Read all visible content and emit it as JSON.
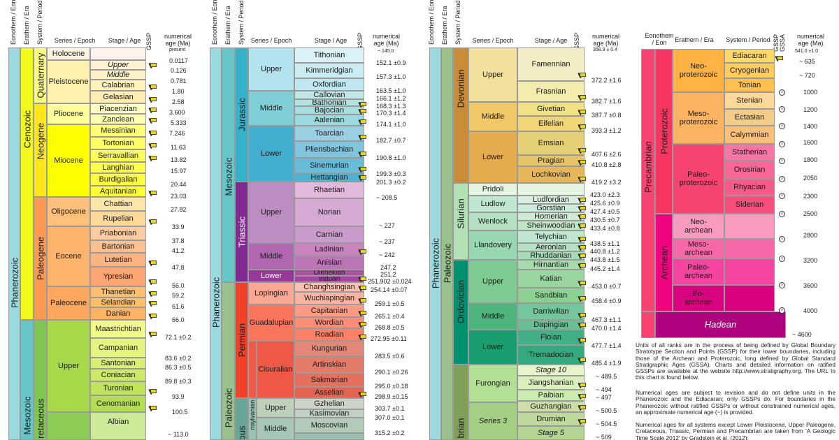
{
  "headers": {
    "eonothem_eon": "Eonothem / Eon",
    "erathem_era": "Erathem / Era",
    "system_period": "System / Period",
    "series_epoch": "Series / Epoch",
    "stage_age": "Stage / Age",
    "gssp": "GSSP",
    "numerical_age_1": "numerical",
    "numerical_age_2": "age (Ma)",
    "gssa": "GSSA",
    "eonothem_eon_stacked_1": "Eonothem",
    "eonothem_eon_stacked_2": "/ Eon"
  },
  "panel1": {
    "eon": "Phanerozoic",
    "eras": [
      "Cenozoic",
      "Mesozoic"
    ],
    "periods": [
      "Quaternary",
      "Neogene",
      "Paleogene",
      "Cretaceous"
    ],
    "epochs": [
      "Holocene",
      "Pleistocene",
      "Pliocene",
      "Miocene",
      "Oligocene",
      "Eocene",
      "Paleocene",
      "Upper"
    ],
    "stages": [
      "Upper",
      "Middle",
      "Calabrian",
      "Gelasian",
      "Piacenzian",
      "Zanclean",
      "Messinian",
      "Tortonian",
      "Serravallian",
      "Langhian",
      "Burdigalian",
      "Aquitanian",
      "Chattian",
      "Rupelian",
      "Priabonian",
      "Bartonian",
      "Lutetian",
      "Ypresian",
      "Thanetian",
      "Selandian",
      "Danian",
      "Maastrichtian",
      "Campanian",
      "Santonian",
      "Coniacian",
      "Turonian",
      "Cenomanian",
      "Albian"
    ],
    "ages": [
      "present",
      "0.0117",
      "0.126",
      "0.781",
      "1.80",
      "2.58",
      "3.600",
      "5.333",
      "7.246",
      "11.63",
      "13.82",
      "15.97",
      "20.44",
      "23.03",
      "27.82",
      "33.9",
      "37.8",
      "41.2",
      "47.8",
      "56.0",
      "59.2",
      "61.6",
      "66.0",
      "72.1 ±0.2",
      "83.6 ±0.2",
      "86.3 ±0.5",
      "89.8 ±0.3",
      "93.9",
      "100.5",
      "~ 113.0"
    ]
  },
  "panel2": {
    "eon": "Phanerozoic",
    "eras": [
      "Mesozoic",
      "Paleozoic"
    ],
    "periods": [
      "Jurassic",
      "Triassic",
      "Permian",
      "ous"
    ],
    "subperiod": "nsylvanian",
    "epochs": [
      "Upper",
      "Middle",
      "Lower",
      "Upper",
      "Middle",
      "Lower",
      "Lopingian",
      "Guadalupian",
      "Cisuralian",
      "Upper",
      "Middle"
    ],
    "stages": [
      "Tithonian",
      "Kimmeridgian",
      "Oxfordian",
      "Callovian",
      "Bathonian",
      "Bajocian",
      "Aalenian",
      "Toarcian",
      "Pliensbachian",
      "Sinemurian",
      "Hettangian",
      "Rhaetian",
      "Norian",
      "Carnian",
      "Ladinian",
      "Anisian",
      "Olenekian",
      "Induan",
      "Changhsingian",
      "Wuchiapingian",
      "Capitanian",
      "Wordian",
      "Roadian",
      "Kungurian",
      "Artinskian",
      "Sakmarian",
      "Asselian",
      "Gzhelian",
      "Kasimovian",
      "Moscovian"
    ],
    "ages": [
      "~ 145.0",
      "152.1 ±0.9",
      "157.3 ±1.0",
      "163.5 ±1.0",
      "166.1 ±1.2",
      "168.3 ±1.3",
      "170.3 ±1.4",
      "174.1 ±1.0",
      "182.7 ±0.7",
      "190.8 ±1.0",
      "199.3 ±0.3",
      "201.3 ±0.2",
      "~ 208.5",
      "~ 227",
      "~ 237",
      "~ 242",
      "247.2",
      "251.2",
      "251.902 ±0.024",
      "254.14 ±0.07",
      "259.1 ±0.5",
      "265.1 ±0.4",
      "268.8 ±0.5",
      "272.95 ±0.11",
      "283.5 ±0.6",
      "290.1 ±0.26",
      "295.0 ±0.18",
      "298.9 ±0.15",
      "303.7 ±0.1",
      "307.0 ±0.1",
      "315.2 ±0.2"
    ]
  },
  "panel3": {
    "eon": "Phanerozoic",
    "era": "Paleozoic",
    "periods": [
      "Devonian",
      "Silurian",
      "Ordovician",
      "brian"
    ],
    "epochs": [
      "Upper",
      "Middle",
      "Lower",
      "Pridoli",
      "Ludlow",
      "Wenlock",
      "Llandovery",
      "Upper",
      "Middle",
      "Lower",
      "Furongian",
      "Series 3"
    ],
    "stages": [
      "Famennian",
      "Frasnian",
      "Givetian",
      "Eifelian",
      "Emsian",
      "Pragian",
      "Lochkovian",
      "Ludfordian",
      "Gorstian",
      "Homerian",
      "Sheinwoodian",
      "Telychian",
      "Aeronian",
      "Rhuddanian",
      "Hirnantian",
      "Katian",
      "Sandbian",
      "Darriwilian",
      "Dapingian",
      "Floian",
      "Tremadocian",
      "Stage 10",
      "Jiangshanian",
      "Paibian",
      "Guzhangian",
      "Drumian",
      "Stage 5"
    ],
    "ages": [
      "358.9 ± 0.4",
      "372.2 ±1.6",
      "382.7 ±1.6",
      "387.7 ±0.8",
      "393.3 ±1.2",
      "407.6 ±2.6",
      "410.8 ±2.8",
      "419.2 ±3.2",
      "423.0 ±2.3",
      "425.6 ±0.9",
      "427.4 ±0.5",
      "430.5 ±0.7",
      "433.4 ±0.8",
      "438.5 ±1.1",
      "440.8 ±1.2",
      "443.8 ±1.5",
      "445.2 ±1.4",
      "453.0 ±0.7",
      "458.4 ±0.9",
      "467.3 ±1.1",
      "470.0 ±1.4",
      "477.7 ±1.4",
      "485.4 ±1.9",
      "~ 489.5",
      "~ 494",
      "~ 497",
      "~ 500.5",
      "~ 504.5",
      "~ 509"
    ]
  },
  "panel4": {
    "supereon": "Precambrian",
    "eons": [
      "Proterozoic",
      "Archean",
      "Hadean"
    ],
    "eras": [
      "Neo-\nproterozoic",
      "Meso-\nproterozoic",
      "Paleo-\nproterozoic",
      "Neo-\narchean",
      "Meso-\narchean",
      "Paleo-\narchean",
      "Eo-\narchean"
    ],
    "periods": [
      "Ediacaran",
      "Cryogenian",
      "Tonian",
      "Stenian",
      "Ectasian",
      "Calymmian",
      "Statherian",
      "Orosirian",
      "Rhyacian",
      "Siderian"
    ],
    "ages": [
      "541.0 ±1.0",
      "~ 635",
      "~ 720",
      "1000",
      "1200",
      "1400",
      "1600",
      "1800",
      "2050",
      "2300",
      "2500",
      "2800",
      "3200",
      "3600",
      "4000",
      "~ 4600"
    ]
  },
  "notes": [
    "Units of all ranks are in the process of being defined by Global Boundary Stratotype Section and Points (GSSP) for their lower boundaries, including those of the Archean and Proterozoic, long defined by Global Standard Stratigraphic Ages (GSSA). Charts and detailed information on ratified GSSPs are available at the website http://www.stratigraphy.org. The URL to this chart is found below.",
    "Numerical ages are subject to revision and do not define units in the Phanerozoic and the Ediacaran; only GSSPs do. For boundaries in the Phanerozoic without ratified GSSPs or without constrained numerical ages, an approximate numerical age (~) is provided.",
    "Numerical ages for all systems except Lower Pleistocene, Upper Paleogene, Cretaceous, Triassic, Permian and Precambrian are taken from 'A Geologic Time Scale 2012' by Gradstein et al. (2012);"
  ],
  "colors": {
    "phanerozoic": "#9AD9DD",
    "cenozoic": "#F2F91D",
    "quaternary": "#F9F97F",
    "neogene": "#FFE619",
    "paleogene": "#FD9A52",
    "mesozoic": "#67C5CA",
    "cretaceous": "#7FC64E",
    "jurassic": "#34B2C9",
    "triassic": "#812B92",
    "permian": "#F04028",
    "paleozoic": "#99C08D",
    "devonian": "#CB8C37",
    "silurian": "#B3E1B6",
    "ordovician": "#009270",
    "cambrian": "#7FA056",
    "precambrian": "#F74370",
    "proterozoic": "#F73563",
    "archean": "#F0047F",
    "hadean": "#AE027E"
  }
}
